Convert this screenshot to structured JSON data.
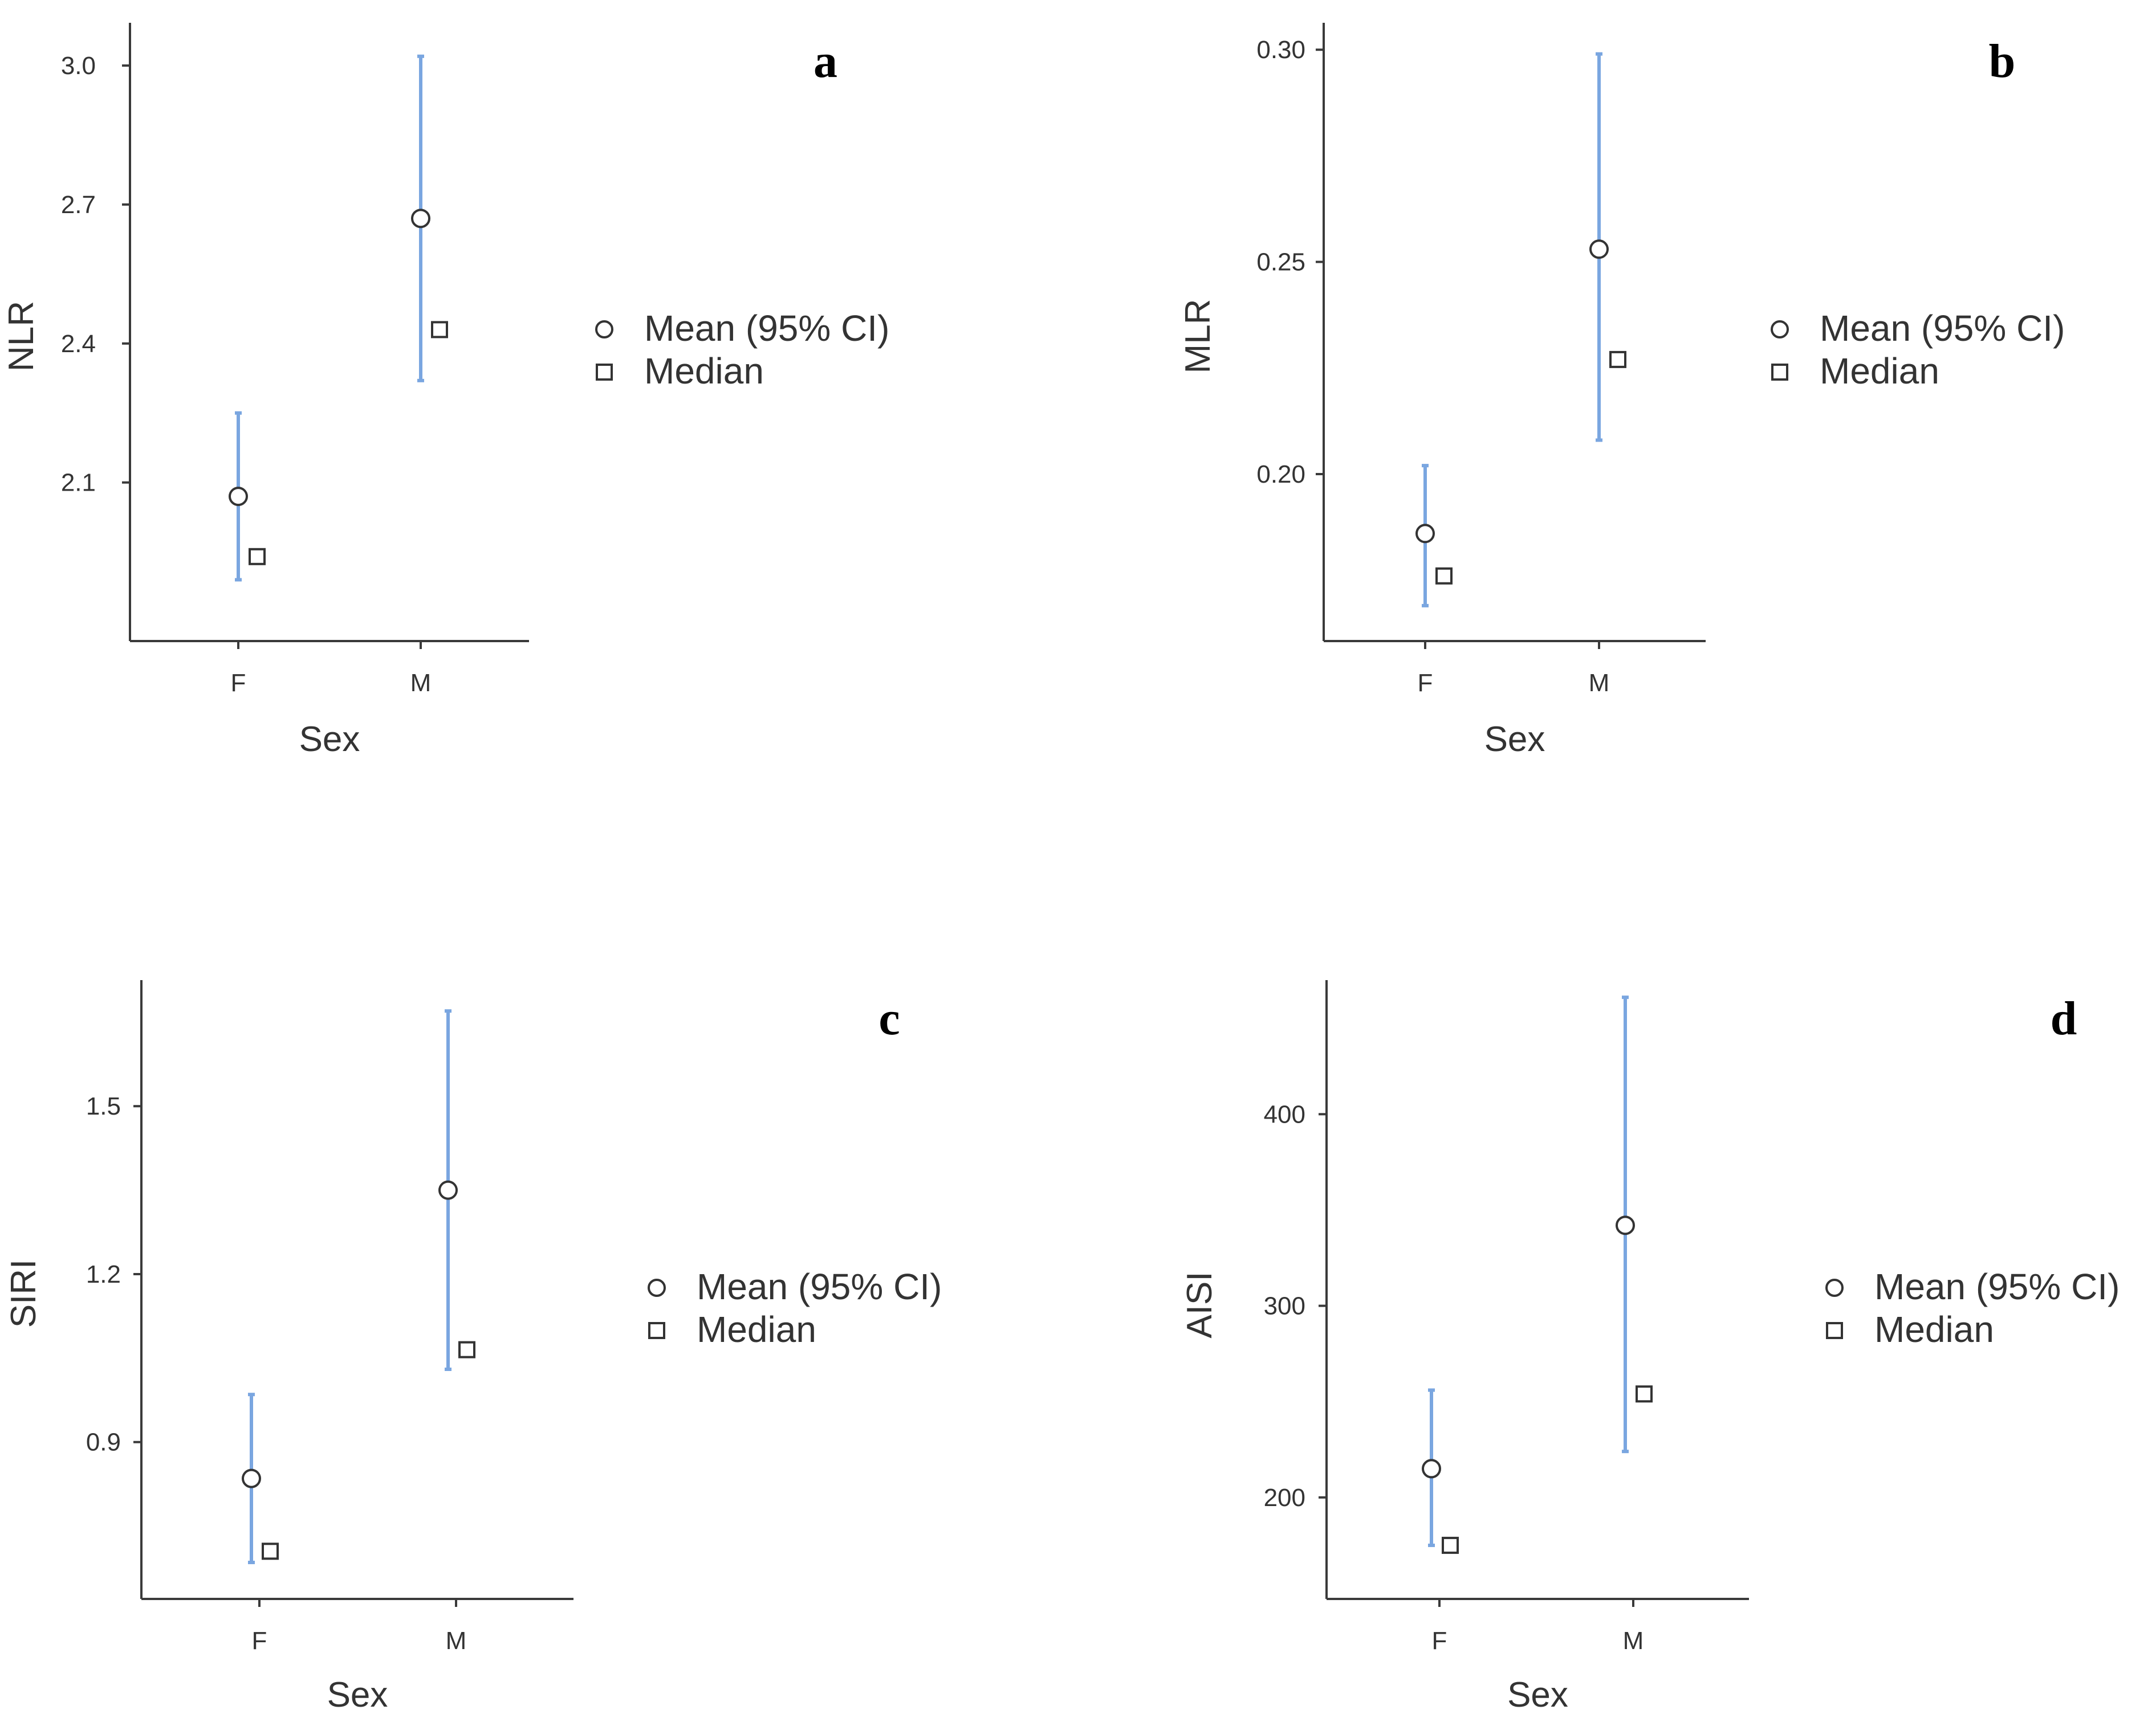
{
  "colors": {
    "ci": "#7aa6e0",
    "axis": "#3a3a3a",
    "text": "#333333"
  },
  "chart_data": [
    {
      "type": "scatter",
      "panel": "a",
      "ylabel": "NLR",
      "xlabel": "Sex",
      "categories": [
        "F",
        "M"
      ],
      "yticks": [
        "2.1",
        "2.4",
        "2.7",
        "3.0"
      ],
      "ytick_values": [
        2.1,
        2.4,
        2.7,
        3.0
      ],
      "ylim": [
        1.77,
        3.08
      ],
      "mean": [
        2.07,
        2.67
      ],
      "ci_low": [
        1.89,
        2.32
      ],
      "ci_high": [
        2.25,
        3.02
      ],
      "median": [
        1.94,
        2.43
      ],
      "legend": {
        "mean": "Mean (95% CI)",
        "median": "Median"
      }
    },
    {
      "type": "scatter",
      "panel": "b",
      "ylabel": "MLR",
      "xlabel": "Sex",
      "categories": [
        "F",
        "M"
      ],
      "yticks": [
        "0.20",
        "0.25",
        "0.30"
      ],
      "ytick_values": [
        0.2,
        0.25,
        0.3
      ],
      "ylim": [
        0.162,
        0.305
      ],
      "mean": [
        0.186,
        0.253
      ],
      "ci_low": [
        0.169,
        0.208
      ],
      "ci_high": [
        0.202,
        0.299
      ],
      "median": [
        0.176,
        0.227
      ],
      "legend": {
        "mean": "Mean (95% CI)",
        "median": "Median"
      }
    },
    {
      "type": "scatter",
      "panel": "c",
      "ylabel": "SIRI",
      "xlabel": "Sex",
      "categories": [
        "F",
        "M"
      ],
      "yticks": [
        "0.9",
        "1.2",
        "1.5"
      ],
      "ytick_values": [
        0.9,
        1.2,
        1.5
      ],
      "ylim": [
        0.63,
        1.715
      ],
      "mean": [
        0.835,
        1.35
      ],
      "ci_low": [
        0.685,
        1.03
      ],
      "ci_high": [
        0.985,
        1.67
      ],
      "median": [
        0.705,
        1.065
      ],
      "legend": {
        "mean": "Mean (95% CI)",
        "median": "Median"
      }
    },
    {
      "type": "scatter",
      "panel": "d",
      "ylabel": "AISI",
      "xlabel": "Sex",
      "categories": [
        "F",
        "M"
      ],
      "yticks": [
        "200",
        "300",
        "400"
      ],
      "ytick_values": [
        200,
        300,
        400
      ],
      "ylim": [
        150,
        467
      ],
      "mean": [
        215,
        342
      ],
      "ci_low": [
        175,
        224
      ],
      "ci_high": [
        256,
        461
      ],
      "median": [
        175,
        254
      ],
      "legend": {
        "mean": "Mean (95% CI)",
        "median": "Median"
      }
    }
  ]
}
